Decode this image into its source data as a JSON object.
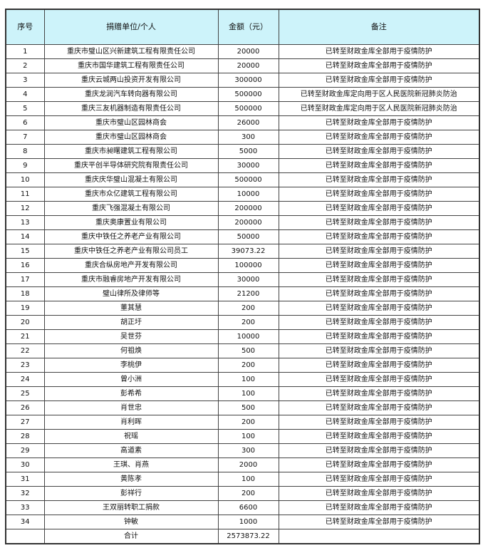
{
  "header": {
    "index": "序号",
    "donor": "捐赠单位/个人",
    "amount": "金额（元）",
    "remark": "备注"
  },
  "rows": [
    {
      "index": "1",
      "donor": "重庆市璧山区兴新建筑工程有限责任公司",
      "amount": "20000",
      "remark": "已转至财政金库全部用于疫情防护"
    },
    {
      "index": "2",
      "donor": "重庆市国华建筑工程有限责任公司",
      "amount": "20000",
      "remark": "已转至财政金库全部用于疫情防护"
    },
    {
      "index": "3",
      "donor": "重庆云城两山投资开发有限公司",
      "amount": "300000",
      "remark": "已转至财政金库全部用于疫情防护"
    },
    {
      "index": "4",
      "donor": "重庆龙润汽车转向器有限公司",
      "amount": "500000",
      "remark": "已转至财政金库定向用于区人民医院新冠肺炎防治"
    },
    {
      "index": "5",
      "donor": "重庆三友机器制造有限责任公司",
      "amount": "500000",
      "remark": "已转至财政金库定向用于区人民医院新冠肺炎防治"
    },
    {
      "index": "6",
      "donor": "重庆市璧山区园林商会",
      "amount": "26000",
      "remark": "已转至财政金库全部用于疫情防护"
    },
    {
      "index": "7",
      "donor": "重庆市璧山区园林商会",
      "amount": "300",
      "remark": "已转至财政金库全部用于疫情防护"
    },
    {
      "index": "8",
      "donor": "重庆市昶曙建筑工程有限公司",
      "amount": "5000",
      "remark": "已转至财政金库全部用于疫情防护"
    },
    {
      "index": "9",
      "donor": "重庆平创半导体研究院有限责任公司",
      "amount": "30000",
      "remark": "已转至财政金库全部用于疫情防护"
    },
    {
      "index": "10",
      "donor": "重庆庆华璧山混凝土有限公司",
      "amount": "500000",
      "remark": "已转至财政金库全部用于疫情防护"
    },
    {
      "index": "11",
      "donor": "重庆市众亿建筑工程有限公司",
      "amount": "10000",
      "remark": "已转至财政金库全部用于疫情防护"
    },
    {
      "index": "12",
      "donor": "重庆飞强混凝土有限公司",
      "amount": "200000",
      "remark": "已转至财政金库全部用于疫情防护"
    },
    {
      "index": "13",
      "donor": "重庆奥康置业有限公司",
      "amount": "200000",
      "remark": "已转至财政金库全部用于疫情防护"
    },
    {
      "index": "14",
      "donor": "重庆中铁任之养老产业有限公司",
      "amount": "50000",
      "remark": "已转至财政金库全部用于疫情防护"
    },
    {
      "index": "15",
      "donor": "重庆中铁任之养老产业有限公司员工",
      "amount": "39073.22",
      "remark": "已转至财政金库全部用于疫情防护"
    },
    {
      "index": "16",
      "donor": "重庆合纵房地产开发有限公司",
      "amount": "100000",
      "remark": "已转至财政金库全部用于疫情防护"
    },
    {
      "index": "17",
      "donor": "重庆市融睿房地产开发有限公司",
      "amount": "30000",
      "remark": "已转至财政金库全部用于疫情防护"
    },
    {
      "index": "18",
      "donor": "璧山律所及律师等",
      "amount": "21200",
      "remark": "已转至财政金库全部用于疫情防护"
    },
    {
      "index": "19",
      "donor": "董其慧",
      "amount": "200",
      "remark": "已转至财政金库全部用于疫情防护"
    },
    {
      "index": "20",
      "donor": "胡正圩",
      "amount": "200",
      "remark": "已转至财政金库全部用于疫情防护"
    },
    {
      "index": "21",
      "donor": "吴世芬",
      "amount": "10000",
      "remark": "已转至财政金库全部用于疫情防护"
    },
    {
      "index": "22",
      "donor": "何祖焕",
      "amount": "500",
      "remark": "已转至财政金库全部用于疫情防护"
    },
    {
      "index": "23",
      "donor": "李桃伊",
      "amount": "200",
      "remark": "已转至财政金库全部用于疫情防护"
    },
    {
      "index": "24",
      "donor": "曾小洲",
      "amount": "100",
      "remark": "已转至财政金库全部用于疫情防护"
    },
    {
      "index": "25",
      "donor": "彭希希",
      "amount": "100",
      "remark": "已转至财政金库全部用于疫情防护"
    },
    {
      "index": "26",
      "donor": "肖世忠",
      "amount": "500",
      "remark": "已转至财政金库全部用于疫情防护"
    },
    {
      "index": "27",
      "donor": "肖利晖",
      "amount": "200",
      "remark": "已转至财政金库全部用于疫情防护"
    },
    {
      "index": "28",
      "donor": "祝瑶",
      "amount": "100",
      "remark": "已转至财政金库全部用于疫情防护"
    },
    {
      "index": "29",
      "donor": "高道素",
      "amount": "300",
      "remark": "已转至财政金库全部用于疫情防护"
    },
    {
      "index": "30",
      "donor": "王琪、肖燕",
      "amount": "2000",
      "remark": "已转至财政金库全部用于疫情防护"
    },
    {
      "index": "31",
      "donor": "黄陈孝",
      "amount": "100",
      "remark": "已转至财政金库全部用于疫情防护"
    },
    {
      "index": "32",
      "donor": "彭祥行",
      "amount": "200",
      "remark": "已转至财政金库全部用于疫情防护"
    },
    {
      "index": "33",
      "donor": "王双丽转职工捐款",
      "amount": "6600",
      "remark": "已转至财政金库全部用于疫情防护"
    },
    {
      "index": "34",
      "donor": "钟敏",
      "amount": "1000",
      "remark": "已转至财政金库全部用于疫情防护"
    }
  ],
  "total": {
    "label": "合计",
    "amount": "2573873.22"
  },
  "colors": {
    "header_bg": "#cdf3fa"
  }
}
